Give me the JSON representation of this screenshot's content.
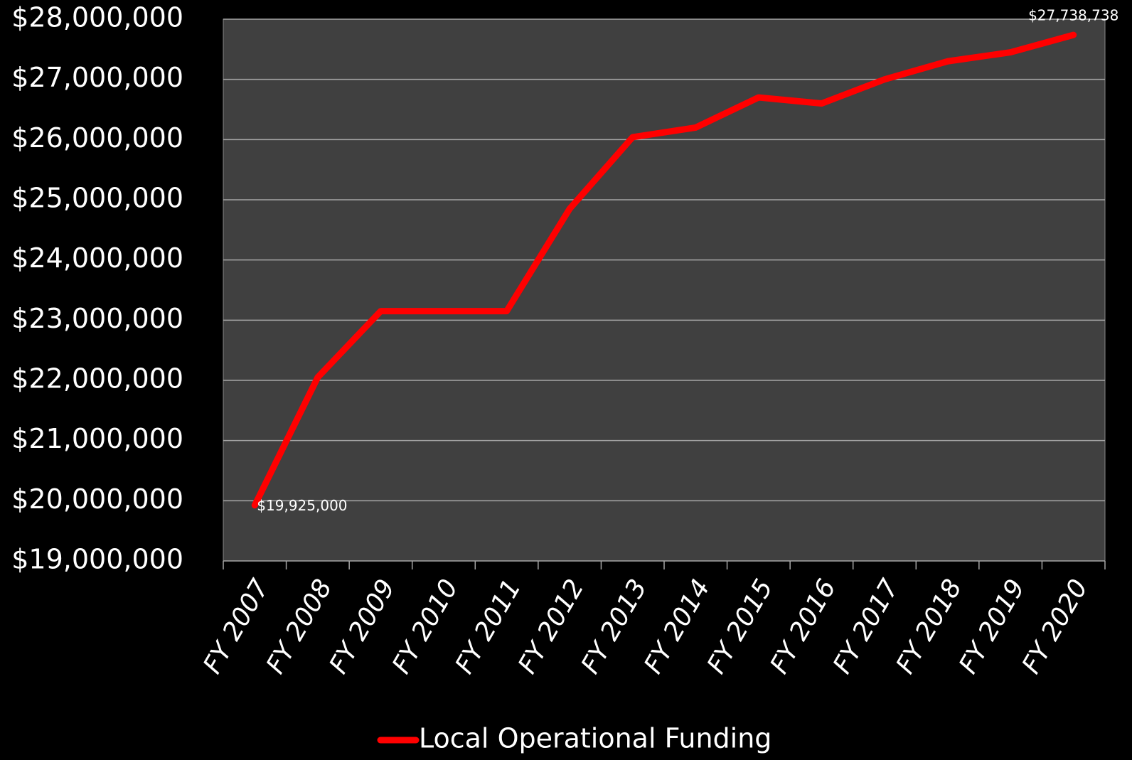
{
  "chart_data": {
    "type": "line",
    "categories": [
      "FY 2007",
      "FY 2008",
      "FY 2009",
      "FY 2010",
      "FY 2011",
      "FY 2012",
      "FY 2013",
      "FY 2014",
      "FY 2015",
      "FY 2016",
      "FY 2017",
      "FY 2018",
      "FY 2019",
      "FY 2020"
    ],
    "series": [
      {
        "name": "Local Operational Funding",
        "color": "#ff0000",
        "values": [
          19925000,
          22050000,
          23150000,
          23150000,
          23150000,
          24850000,
          26040000,
          26200000,
          26700000,
          26600000,
          27000000,
          27300000,
          27450000,
          27738738
        ],
        "value_labels": [
          "$19,925,000",
          null,
          null,
          null,
          null,
          null,
          null,
          null,
          null,
          null,
          null,
          null,
          null,
          "$27,738,738"
        ]
      }
    ],
    "ylim": [
      19000000,
      28000000
    ],
    "yticks": [
      {
        "value": 19000000,
        "label": "$19,000,000"
      },
      {
        "value": 20000000,
        "label": "$20,000,000"
      },
      {
        "value": 21000000,
        "label": "$21,000,000"
      },
      {
        "value": 22000000,
        "label": "$22,000,000"
      },
      {
        "value": 23000000,
        "label": "$23,000,000"
      },
      {
        "value": 24000000,
        "label": "$24,000,000"
      },
      {
        "value": 25000000,
        "label": "$25,000,000"
      },
      {
        "value": 26000000,
        "label": "$26,000,000"
      },
      {
        "value": 27000000,
        "label": "$27,000,000"
      },
      {
        "value": 28000000,
        "label": "$28,000,000"
      }
    ],
    "grid": true,
    "legend": "bottom"
  }
}
